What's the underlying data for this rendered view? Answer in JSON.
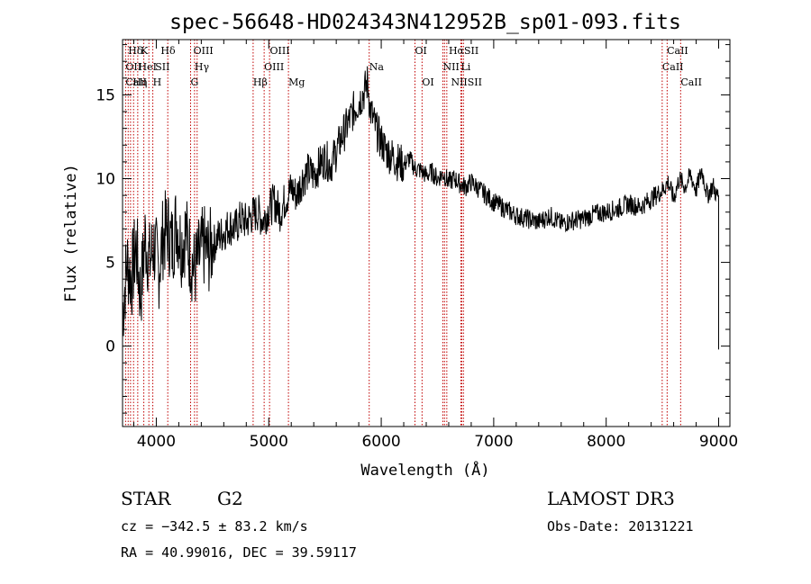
{
  "chart_data": {
    "type": "line",
    "title": "spec-56648-HD024343N412952B_sp01-093.fits",
    "xlabel": "Wavelength (Å)",
    "ylabel": "Flux (relative)",
    "xlim": [
      3700,
      9100
    ],
    "ylim": [
      -4.8,
      18.3
    ],
    "x_ticks": [
      4000,
      5000,
      6000,
      7000,
      8000,
      9000
    ],
    "y_ticks": [
      0,
      5,
      10,
      15
    ],
    "grid": false,
    "series": [
      {
        "x": [
          3700,
          3740,
          3780,
          3820,
          3860,
          3900,
          3940,
          3980,
          4020,
          4060,
          4100,
          4140,
          4180,
          4220,
          4260,
          4300,
          4340,
          4380,
          4420,
          4460,
          4500,
          4550,
          4600,
          4650,
          4700,
          4750,
          4800,
          4850,
          4900,
          4950,
          5000,
          5050,
          5100,
          5150,
          5200,
          5250,
          5300,
          5350,
          5400,
          5450,
          5500,
          5550,
          5600,
          5650,
          5700,
          5750,
          5800,
          5850,
          5880,
          5900,
          5950,
          6000,
          6050,
          6100,
          6150,
          6200,
          6250,
          6300,
          6350,
          6400,
          6450,
          6500,
          6550,
          6600,
          6650,
          6700,
          6750,
          6800,
          6900,
          7000,
          7100,
          7200,
          7300,
          7400,
          7500,
          7600,
          7700,
          7800,
          7900,
          8000,
          8100,
          8200,
          8300,
          8400,
          8500,
          8550,
          8600,
          8650,
          8700,
          8750,
          8800,
          8850,
          8900,
          8950,
          8980,
          9000
        ],
        "y": [
          2.0,
          5.0,
          4.0,
          6.0,
          3.0,
          6.5,
          5.0,
          6.0,
          4.5,
          6.5,
          7.0,
          6.0,
          7.5,
          6.0,
          6.8,
          5.5,
          4.5,
          5.2,
          6.0,
          5.5,
          6.0,
          6.5,
          6.8,
          7.2,
          7.0,
          7.6,
          7.4,
          7.8,
          8.0,
          7.5,
          8.2,
          8.6,
          8.0,
          8.8,
          9.4,
          9.0,
          10.0,
          10.4,
          10.2,
          10.8,
          11.2,
          10.8,
          11.6,
          12.5,
          13.2,
          14.0,
          14.6,
          15.2,
          15.8,
          14.2,
          13.0,
          12.2,
          11.6,
          11.3,
          11.0,
          10.8,
          11.2,
          10.6,
          10.5,
          10.2,
          10.4,
          10.0,
          10.3,
          9.8,
          10.0,
          9.7,
          9.5,
          9.8,
          9.2,
          8.6,
          8.2,
          7.8,
          7.6,
          7.4,
          7.8,
          7.3,
          7.5,
          7.6,
          7.9,
          8.0,
          8.2,
          8.5,
          8.3,
          8.8,
          9.3,
          9.8,
          8.8,
          10.0,
          9.5,
          10.2,
          9.3,
          10.5,
          9.0,
          9.6,
          9.0,
          9.0
        ]
      }
    ],
    "emission_lines": [
      {
        "label": "Hδ",
        "x": 3750,
        "row": 0
      },
      {
        "label": "K",
        "x": 3860,
        "row": 0
      },
      {
        "label": "Hδ",
        "x": 4040,
        "row": 0
      },
      {
        "label": "OIII",
        "x": 4330,
        "row": 0
      },
      {
        "label": "OIII",
        "x": 5010,
        "row": 0
      },
      {
        "label": "OI",
        "x": 6300,
        "row": 0
      },
      {
        "label": "HαSII",
        "x": 6600,
        "row": 0
      },
      {
        "label": "CaII",
        "x": 8540,
        "row": 0
      },
      {
        "label": "OII",
        "x": 3727,
        "row": 1
      },
      {
        "label": "HeI",
        "x": 3840,
        "row": 1
      },
      {
        "label": "SII",
        "x": 3990,
        "row": 1
      },
      {
        "label": "Hγ",
        "x": 4340,
        "row": 1
      },
      {
        "label": "OIII",
        "x": 4959,
        "row": 1
      },
      {
        "label": "Na",
        "x": 5893,
        "row": 1
      },
      {
        "label": "NII",
        "x": 6548,
        "row": 1
      },
      {
        "label": "Li",
        "x": 6708,
        "row": 1
      },
      {
        "label": "CaII",
        "x": 8498,
        "row": 1
      },
      {
        "label": "CaII",
        "x": 3727,
        "row": 2
      },
      {
        "label": "Hη",
        "x": 3790,
        "row": 2
      },
      {
        "label": "H",
        "x": 3969,
        "row": 2
      },
      {
        "label": "G",
        "x": 4305,
        "row": 2
      },
      {
        "label": "Hβ",
        "x": 4861,
        "row": 2
      },
      {
        "label": "Mg",
        "x": 5175,
        "row": 2
      },
      {
        "label": "OI",
        "x": 6363,
        "row": 2
      },
      {
        "label": "NIISII",
        "x": 6620,
        "row": 2
      },
      {
        "label": "CaII",
        "x": 8662,
        "row": 2
      }
    ],
    "line_markers": [
      3727,
      3750,
      3771,
      3798,
      3835,
      3889,
      3934,
      3969,
      4102,
      4305,
      4340,
      4363,
      4861,
      4959,
      5007,
      5175,
      5893,
      6300,
      6363,
      6548,
      6563,
      6583,
      6708,
      6716,
      6731,
      8498,
      8542,
      8662
    ]
  },
  "info": {
    "class_label": "STAR",
    "subclass": "G2",
    "survey": "LAMOST DR3",
    "cz": "cz = −342.5 ± 83.2 km/s",
    "obs_date": "Obs-Date: 20131221",
    "coords": "RA =  40.99016, DEC =  39.59117"
  },
  "colors": {
    "spectrum": "#000000",
    "line_markers": "#c00000",
    "axis": "#000000"
  }
}
